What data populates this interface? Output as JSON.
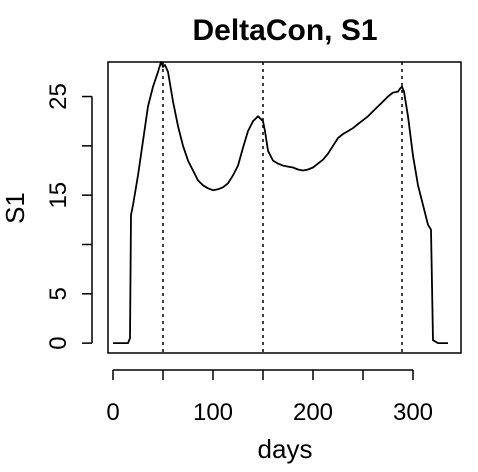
{
  "chart_data": {
    "type": "line",
    "title": "DeltaCon, S1",
    "xlabel": "days",
    "ylabel": "S1",
    "xlim": [
      -5,
      348
    ],
    "ylim": [
      -1,
      28.5
    ],
    "x_ticks": [
      0,
      100,
      200,
      300
    ],
    "x_tick_labels": [
      "0",
      "100",
      "200",
      "300"
    ],
    "y_ticks": [
      0,
      5,
      10,
      15,
      20,
      25
    ],
    "y_tick_labels": [
      "0",
      "5",
      "",
      "15",
      "",
      "25"
    ],
    "vlines": [
      50,
      150,
      289
    ],
    "grid": false,
    "colors": {
      "line": "#000000",
      "frame": "#000000",
      "background": "#ffffff"
    },
    "series": [
      {
        "x": [
          0,
          5,
          10,
          15,
          17,
          18,
          20,
          25,
          30,
          35,
          40,
          45,
          48,
          50,
          52,
          55,
          60,
          65,
          70,
          75,
          80,
          85,
          90,
          95,
          100,
          105,
          110,
          115,
          120,
          125,
          130,
          135,
          140,
          145,
          148,
          150,
          152,
          155,
          160,
          165,
          170,
          175,
          180,
          185,
          190,
          195,
          200,
          205,
          210,
          215,
          220,
          225,
          230,
          235,
          240,
          245,
          250,
          255,
          260,
          265,
          270,
          275,
          280,
          285,
          287,
          289,
          291,
          295,
          300,
          305,
          310,
          315,
          318,
          320,
          325,
          330,
          335
        ],
        "y": [
          0,
          0,
          0,
          0,
          0.5,
          13,
          14,
          17,
          20.5,
          24,
          26,
          27.5,
          28.5,
          28,
          28.2,
          27.5,
          24.5,
          22,
          20,
          18.5,
          17.5,
          16.5,
          16,
          15.7,
          15.5,
          15.6,
          15.8,
          16.2,
          17,
          18,
          19.8,
          21.5,
          22.5,
          23,
          22.7,
          22.5,
          21.5,
          19.5,
          18.5,
          18.2,
          18,
          17.9,
          17.8,
          17.6,
          17.5,
          17.6,
          17.8,
          18.2,
          18.6,
          19.2,
          20,
          20.8,
          21.2,
          21.5,
          21.8,
          22.2,
          22.6,
          23,
          23.5,
          24,
          24.5,
          25,
          25.4,
          25.5,
          25.8,
          26,
          25.5,
          23,
          19,
          16,
          14,
          12,
          11.5,
          0.3,
          0,
          0,
          0
        ]
      }
    ]
  }
}
